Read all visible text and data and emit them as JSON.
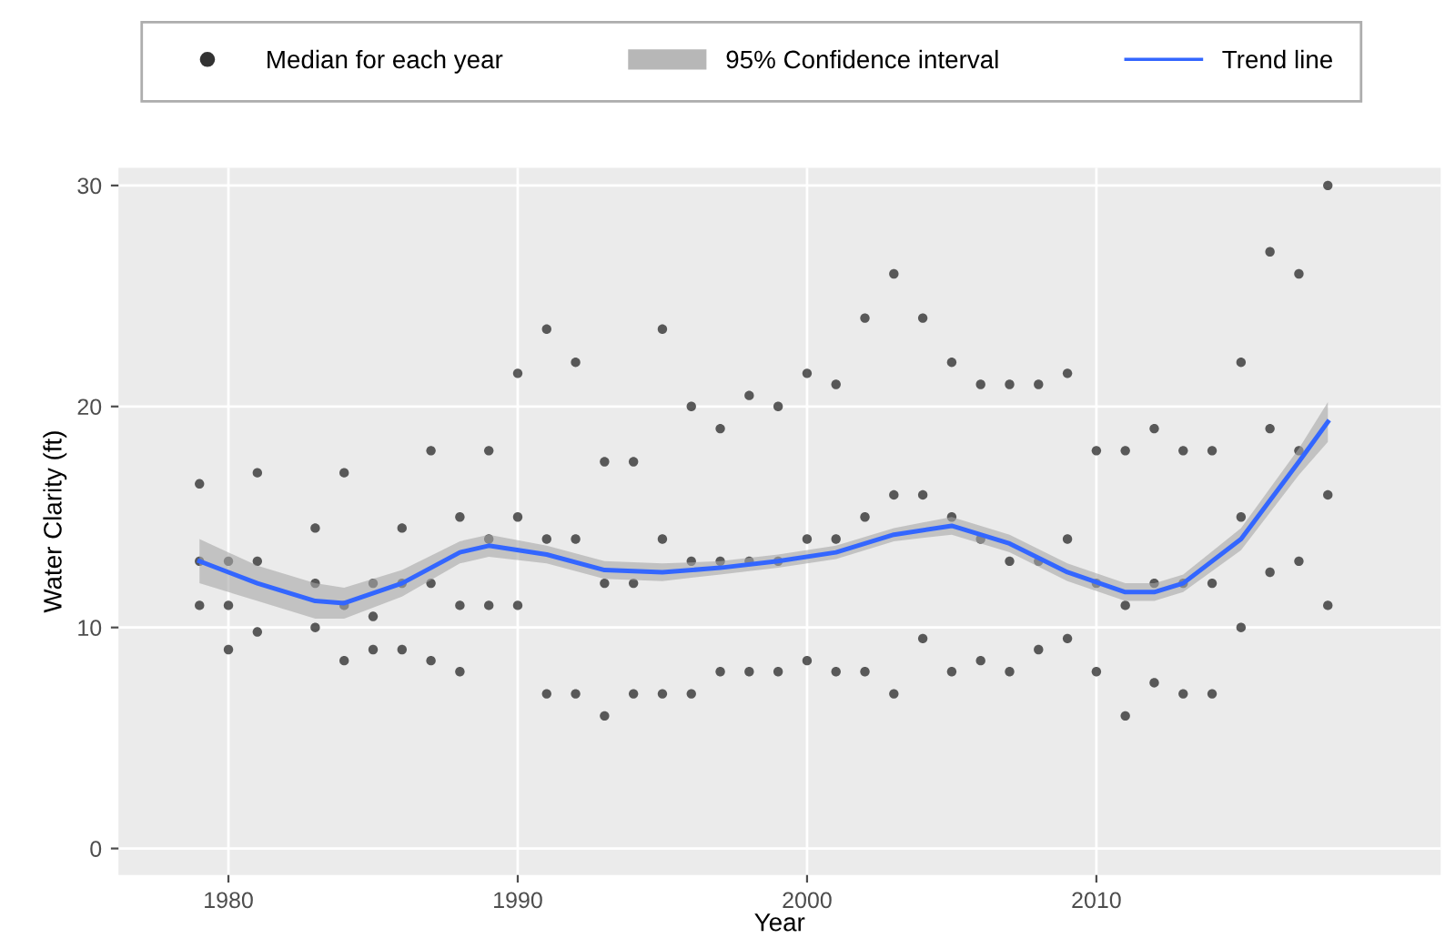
{
  "chart_data": {
    "type": "scatter",
    "xlabel": "Year",
    "ylabel": "Water Clarity (ft)",
    "xlim": [
      1976.2,
      2021.9
    ],
    "ylim": [
      -1.2,
      30.8
    ],
    "xticks": [
      1980,
      1990,
      2000,
      2010
    ],
    "yticks": [
      0,
      10,
      20,
      30
    ],
    "grid": true,
    "legend": "top",
    "annotations": [
      "95% Confidence interval"
    ],
    "series": [
      {
        "name": "Median for each year",
        "color": "#333333",
        "marker": "circle",
        "x": [
          1979,
          1979,
          1979,
          1980,
          1980,
          1980,
          1981,
          1981,
          1981,
          1983,
          1983,
          1983,
          1984,
          1984,
          1984,
          1985,
          1985,
          1985,
          1986,
          1986,
          1986,
          1987,
          1987,
          1987,
          1988,
          1988,
          1988,
          1989,
          1989,
          1989,
          1990,
          1990,
          1990,
          1991,
          1991,
          1991,
          1992,
          1992,
          1992,
          1993,
          1993,
          1993,
          1994,
          1994,
          1994,
          1995,
          1995,
          1995,
          1996,
          1996,
          1996,
          1997,
          1997,
          1997,
          1998,
          1998,
          1998,
          1999,
          1999,
          1999,
          2000,
          2000,
          2000,
          2001,
          2001,
          2001,
          2002,
          2002,
          2002,
          2003,
          2003,
          2003,
          2004,
          2004,
          2004,
          2005,
          2005,
          2005,
          2006,
          2006,
          2006,
          2007,
          2007,
          2007,
          2008,
          2008,
          2008,
          2009,
          2009,
          2009,
          2010,
          2010,
          2010,
          2011,
          2011,
          2011,
          2012,
          2012,
          2012,
          2013,
          2013,
          2013,
          2014,
          2014,
          2014,
          2015,
          2015,
          2015,
          2016,
          2016,
          2016,
          2017,
          2017,
          2017,
          2018,
          2018,
          2018
        ],
        "values": [
          11,
          13,
          16.5,
          9,
          11,
          13,
          9.8,
          13,
          17,
          10,
          12,
          14.5,
          8.5,
          11,
          17,
          9,
          10.5,
          12,
          9,
          12,
          14.5,
          8.5,
          12,
          18,
          8,
          11,
          15,
          11,
          14,
          18,
          11,
          15,
          21.5,
          7,
          14,
          23.5,
          7,
          14,
          22,
          6,
          12,
          17.5,
          7,
          12,
          17.5,
          7,
          14,
          23.5,
          7,
          13,
          20,
          8,
          13,
          19,
          8,
          13,
          20.5,
          8,
          13,
          20,
          8.5,
          14,
          21.5,
          8,
          14,
          21,
          8,
          15,
          24,
          7,
          16,
          26,
          9.5,
          16,
          24,
          8,
          15,
          22,
          8.5,
          14,
          21,
          8,
          13,
          21,
          9,
          13,
          21,
          9.5,
          14,
          21.5,
          8,
          12,
          18,
          6,
          11,
          18,
          7.5,
          12,
          19,
          7,
          12,
          18,
          7,
          12,
          18,
          10,
          15,
          22,
          12.5,
          19,
          27,
          13,
          18,
          26,
          11,
          16,
          30
        ]
      },
      {
        "type": "line",
        "name": "Trend line",
        "color": "#3366ff",
        "lower": [
          12.0,
          11.2,
          10.4,
          10.4,
          11.4,
          12.9,
          13.2,
          12.9,
          12.2,
          12.1,
          12.4,
          12.7,
          13.1,
          13.9,
          14.2,
          13.4,
          12.1,
          11.2,
          11.2,
          11.6,
          13.5,
          16.9,
          18.4
        ],
        "upper": [
          14.0,
          12.8,
          12.0,
          11.8,
          12.6,
          13.9,
          14.2,
          13.7,
          13.0,
          12.9,
          13.0,
          13.3,
          13.7,
          14.5,
          15.0,
          14.2,
          12.9,
          12.0,
          12.0,
          12.4,
          14.5,
          18.1,
          20.2
        ],
        "x": [
          1979,
          1981,
          1983,
          1984,
          1986,
          1988,
          1989,
          1991,
          1993,
          1995,
          1997,
          1999,
          2001,
          2003,
          2005,
          2007,
          2009,
          2011,
          2012,
          2013,
          2015,
          2017,
          2018
        ],
        "values": [
          13.0,
          12.0,
          11.2,
          11.1,
          12.0,
          13.4,
          13.7,
          13.3,
          12.6,
          12.5,
          12.7,
          13.0,
          13.4,
          14.2,
          14.6,
          13.8,
          12.5,
          11.6,
          11.6,
          12.0,
          14.0,
          17.5,
          19.3
        ]
      }
    ]
  }
}
